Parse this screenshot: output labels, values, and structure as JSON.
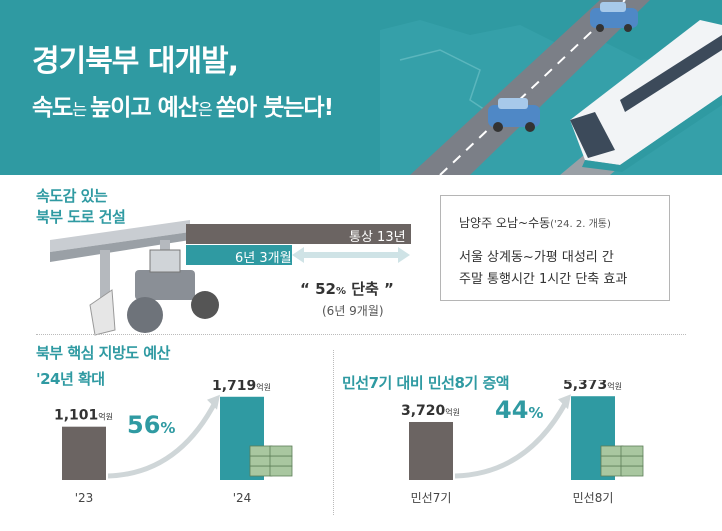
{
  "header": {
    "title_line1": "경기북부 대개발,",
    "title_line2_parts": [
      "속도",
      "는 ",
      "높이고 예산",
      "은 ",
      "쏟아 붓는다!"
    ]
  },
  "road": {
    "section_title_line1": "속도감 있는",
    "section_title_line2": "북부 도로 건설",
    "normal_label": "통상 13년",
    "fast_label": "6년 3개월",
    "reduction_label_prefix": "“ 52",
    "reduction_label_unit": "%",
    "reduction_label_suffix": " 단축 ”",
    "reduction_sub": "(6년 9개월)",
    "info": {
      "line1_main": "남양주 오남~수동",
      "line1_sub": "('24. 2. 개통)",
      "line2": "서울 상계동~가평 대성리 간",
      "line3": "주말 통행시간 1시간 단축 효과"
    }
  },
  "budget": {
    "section_title_line1": "북부 핵심 지방도 예산",
    "section_title_line2": "'24년 확대",
    "increase_num": "56",
    "increase_unit": "%"
  },
  "term": {
    "section_title": "민선7기 대비  민선8기 증액",
    "increase_num": "44",
    "increase_unit": "%"
  },
  "unit_label": "억원",
  "colors": {
    "teal": "#2f9aa2",
    "dark": "#6b6462",
    "gray": "#6b6b6b"
  },
  "chart_data": [
    {
      "type": "bar",
      "title": "북부 핵심 지방도 예산 '24년 확대",
      "categories": [
        "'23",
        "'24"
      ],
      "values": [
        1101,
        1719
      ],
      "value_labels": [
        "1,101",
        "1,719"
      ],
      "unit": "억원",
      "ylim": [
        0,
        1900
      ]
    },
    {
      "type": "bar",
      "title": "민선7기 대비 민선8기 증액",
      "categories": [
        "민선7기",
        "민선8기"
      ],
      "values": [
        3720,
        5373
      ],
      "value_labels": [
        "3,720",
        "5,373"
      ],
      "unit": "억원",
      "ylim": [
        0,
        5900
      ]
    }
  ]
}
